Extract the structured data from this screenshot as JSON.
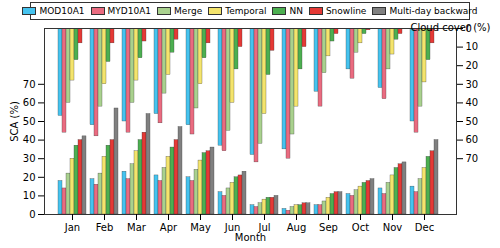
{
  "chart_data": {
    "type": "bar",
    "xlabel": "Month",
    "ylabel": "SCA (%)",
    "y2label": "Cloud cover (%)",
    "categories": [
      "Jan",
      "Feb",
      "Mar",
      "Apr",
      "May",
      "Jun",
      "Jul",
      "Aug",
      "Sep",
      "Oct",
      "Nov",
      "Dec"
    ],
    "ylim": [
      0,
      100
    ],
    "yticks": [
      0,
      10,
      20,
      30,
      40,
      50,
      60,
      70
    ],
    "y2lim": [
      100,
      0
    ],
    "y2ticks": [
      0,
      10,
      20,
      30,
      40,
      50,
      60,
      70
    ],
    "grid": false,
    "legend": "top",
    "series": [
      {
        "name": "MOD10A1",
        "color": "#45c3ef",
        "values": [
          18,
          19,
          23,
          21,
          20,
          12,
          5,
          3,
          5,
          11,
          14,
          15
        ],
        "cloud_cover": [
          47,
          52,
          50,
          46,
          52,
          63,
          68,
          65,
          34,
          22,
          32,
          50
        ]
      },
      {
        "name": "MYD10A1",
        "color": "#ea6b80",
        "values": [
          14,
          16,
          19,
          18,
          18,
          10,
          4,
          2,
          5,
          10,
          11,
          12
        ],
        "cloud_cover": [
          56,
          58,
          56,
          51,
          57,
          66,
          72,
          70,
          42,
          27,
          38,
          56
        ]
      },
      {
        "name": "Merge",
        "color": "#a9d18e",
        "values": [
          22,
          22,
          27,
          25,
          24,
          14,
          6,
          4,
          7,
          13,
          17,
          19
        ],
        "cloud_cover": [
          40,
          42,
          40,
          35,
          43,
          55,
          62,
          57,
          24,
          13,
          22,
          42
        ]
      },
      {
        "name": "Temporal",
        "color": "#f4e46c",
        "values": [
          30,
          31,
          34,
          31,
          29,
          17,
          8,
          5,
          9,
          15,
          21,
          25
        ],
        "cloud_cover": [
          28,
          30,
          28,
          25,
          30,
          40,
          46,
          42,
          15,
          8,
          14,
          29
        ]
      },
      {
        "name": "NN",
        "color": "#4caf50",
        "values": [
          37,
          37,
          40,
          36,
          33,
          20,
          9,
          5,
          11,
          17,
          25,
          31
        ],
        "cloud_cover": [
          17,
          18,
          16,
          13,
          16,
          22,
          25,
          22,
          7,
          3,
          6,
          17
        ]
      },
      {
        "name": "Snowline",
        "color": "#e53935",
        "values": [
          40,
          40,
          44,
          40,
          34,
          21,
          9,
          6,
          12,
          18,
          27,
          34
        ],
        "cloud_cover": [
          8,
          8,
          7,
          6,
          8,
          10,
          12,
          10,
          3,
          1,
          3,
          8
        ]
      },
      {
        "name": "Multi-day backward",
        "color": "#808080",
        "values": [
          42,
          57,
          54,
          47,
          36,
          23,
          10,
          6,
          12,
          19,
          28,
          40
        ],
        "cloud_cover": [
          0,
          0,
          0,
          0,
          0,
          0,
          0,
          0,
          0,
          0,
          0,
          0
        ]
      }
    ]
  }
}
